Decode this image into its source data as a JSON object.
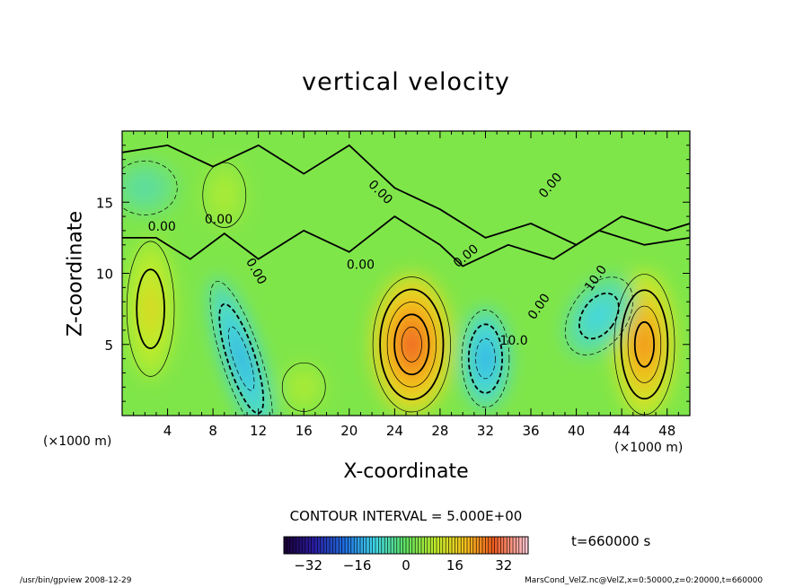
{
  "chart_data": {
    "type": "heatmap",
    "title": "vertical velocity",
    "xlabel": "X-coordinate",
    "ylabel": "Z-coordinate",
    "x_unit_label": "(×1000 m)",
    "xlim": [
      0,
      50
    ],
    "ylim": [
      0,
      20
    ],
    "x_ticks": [
      "4",
      "8",
      "12",
      "16",
      "20",
      "24",
      "28",
      "32",
      "36",
      "40",
      "44",
      "48"
    ],
    "y_ticks": [
      "5",
      "10",
      "15"
    ],
    "contour_interval_text": "CONTOUR INTERVAL = 5.000E+00",
    "contour_labels": [
      "0.00",
      "0.00",
      "0.00",
      "0.00",
      "0.00",
      "0.00",
      "0.00",
      "0.00",
      "10.0",
      "10.0"
    ],
    "colorbar": {
      "range": [
        -40,
        40
      ],
      "ticks": [
        "−32",
        "−16",
        "0",
        "16",
        "32"
      ]
    },
    "features": [
      {
        "x": 2.5,
        "z": 7.5,
        "value": 12
      },
      {
        "x": 10.5,
        "z": 4,
        "value": -14
      },
      {
        "x": 25.5,
        "z": 5,
        "value": 24
      },
      {
        "x": 32,
        "z": 4,
        "value": -14
      },
      {
        "x": 46,
        "z": 5,
        "value": 20
      },
      {
        "x": 42,
        "z": 7,
        "value": -10
      },
      {
        "x": 9,
        "z": 15.5,
        "value": 6
      },
      {
        "x": 2,
        "z": 16,
        "value": -6
      },
      {
        "x": 16,
        "z": 2,
        "value": 6
      }
    ],
    "grid": false,
    "legend": "colorbar-bottom"
  },
  "timestamp": "t=660000 s",
  "footer": {
    "left": "/usr/bin/gpview   2008-12-29",
    "right": "MarsCond_VelZ.nc@VelZ,x=0:50000,z=0:20000,t=660000"
  }
}
